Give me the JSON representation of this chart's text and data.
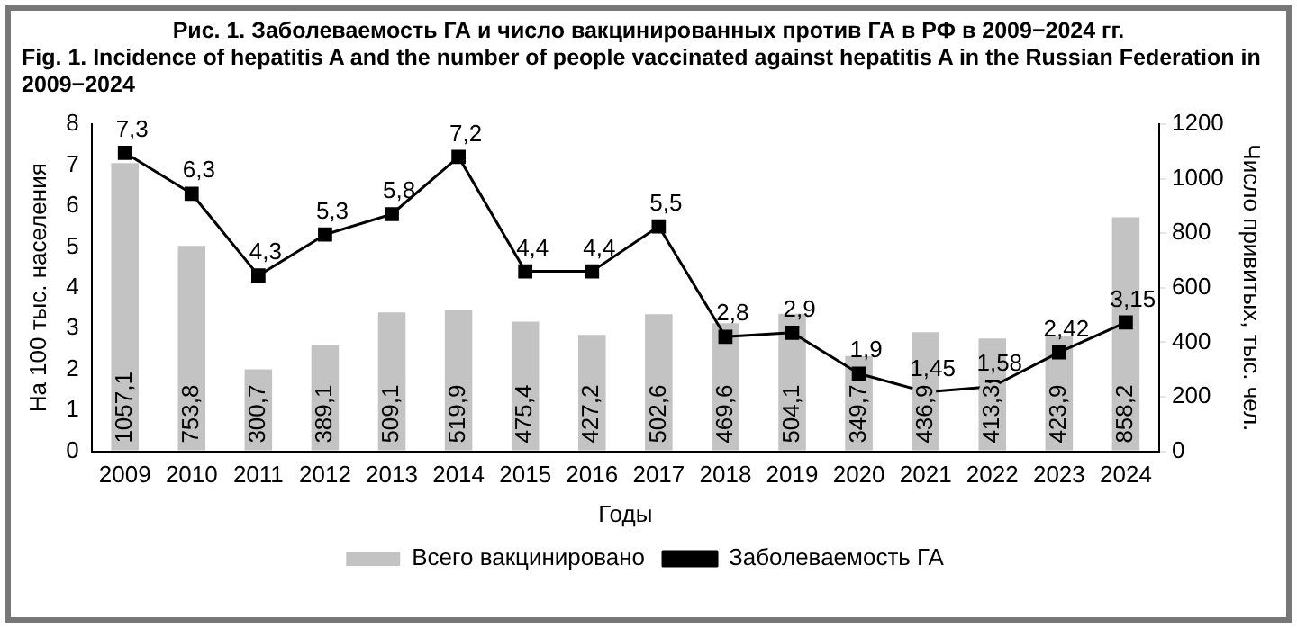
{
  "chart_data": {
    "type": "bar",
    "title": "Рис. 1. Заболеваемость ГА и число вакцинированных против ГА в РФ в 2009−2024 гг.",
    "subtitle": "Fig. 1. Incidence of hepatitis A and the number of people vaccinated against hepatitis A in the Russian Federation in 2009−2024",
    "xlabel": "Годы",
    "ylabel": "На 100 тыс. населения",
    "y2label": "Число привитых, тыс. чел.",
    "categories": [
      "2009",
      "2010",
      "2011",
      "2012",
      "2013",
      "2014",
      "2015",
      "2016",
      "2017",
      "2018",
      "2019",
      "2020",
      "2021",
      "2022",
      "2023",
      "2024"
    ],
    "series": [
      {
        "name": "Всего вакцинировано",
        "axis": "y2",
        "color": "#c3c3c3",
        "values": [
          1057.1,
          753.8,
          300.7,
          389.1,
          509.1,
          519.9,
          475.4,
          427.2,
          502.6,
          469.6,
          504.1,
          349.7,
          436.9,
          413.3,
          423.9,
          858.2
        ],
        "value_labels": [
          "1057,1",
          "753,8",
          "300,7",
          "389,1",
          "509,1",
          "519,9",
          "475,4",
          "427,2",
          "502,6",
          "469,6",
          "504,1",
          "349,7",
          "436,9",
          "413,3",
          "423,9",
          "858,2"
        ]
      },
      {
        "name": "Заболеваемость ГА",
        "type": "line",
        "axis": "y",
        "color": "#000000",
        "marker": "square",
        "values": [
          7.3,
          6.3,
          4.3,
          5.3,
          5.8,
          7.2,
          4.4,
          4.4,
          5.5,
          2.8,
          2.9,
          1.9,
          1.45,
          1.58,
          2.42,
          3.15
        ],
        "value_labels": [
          "7,3",
          "6,3",
          "4,3",
          "5,3",
          "5,8",
          "7,2",
          "4,4",
          "4,4",
          "5,5",
          "2,8",
          "2,9",
          "1,9",
          "1,45",
          "1,58",
          "2,42",
          "3,15"
        ]
      }
    ],
    "ylim": [
      0,
      8
    ],
    "yticks": [
      0,
      1,
      2,
      3,
      4,
      5,
      6,
      7,
      8
    ],
    "y2lim": [
      0,
      1200
    ],
    "y2ticks": [
      0,
      200,
      400,
      600,
      800,
      1000,
      1200
    ],
    "grid": false,
    "legend": "bottom"
  }
}
